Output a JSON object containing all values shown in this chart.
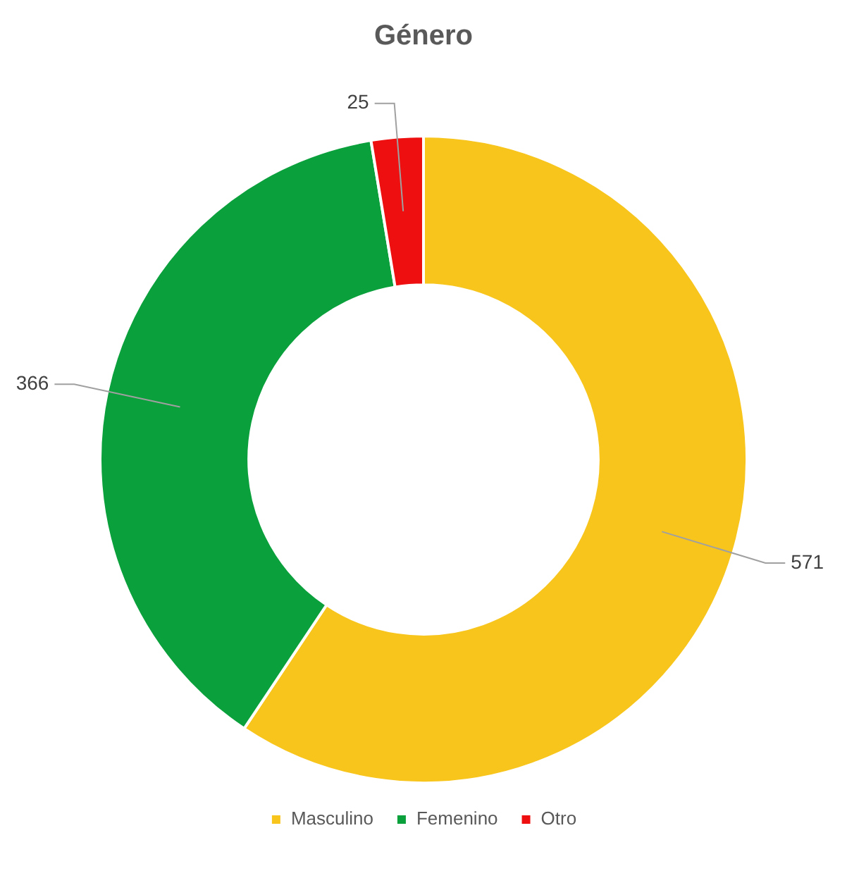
{
  "chart_data": {
    "type": "donut",
    "title": "Género",
    "categories": [
      "Masculino",
      "Femenino",
      "Otro"
    ],
    "values": [
      571,
      366,
      25
    ],
    "colors": [
      "#f8c51c",
      "#0aa03c",
      "#ee1010"
    ],
    "data_labels": true,
    "legend": "bottom"
  }
}
